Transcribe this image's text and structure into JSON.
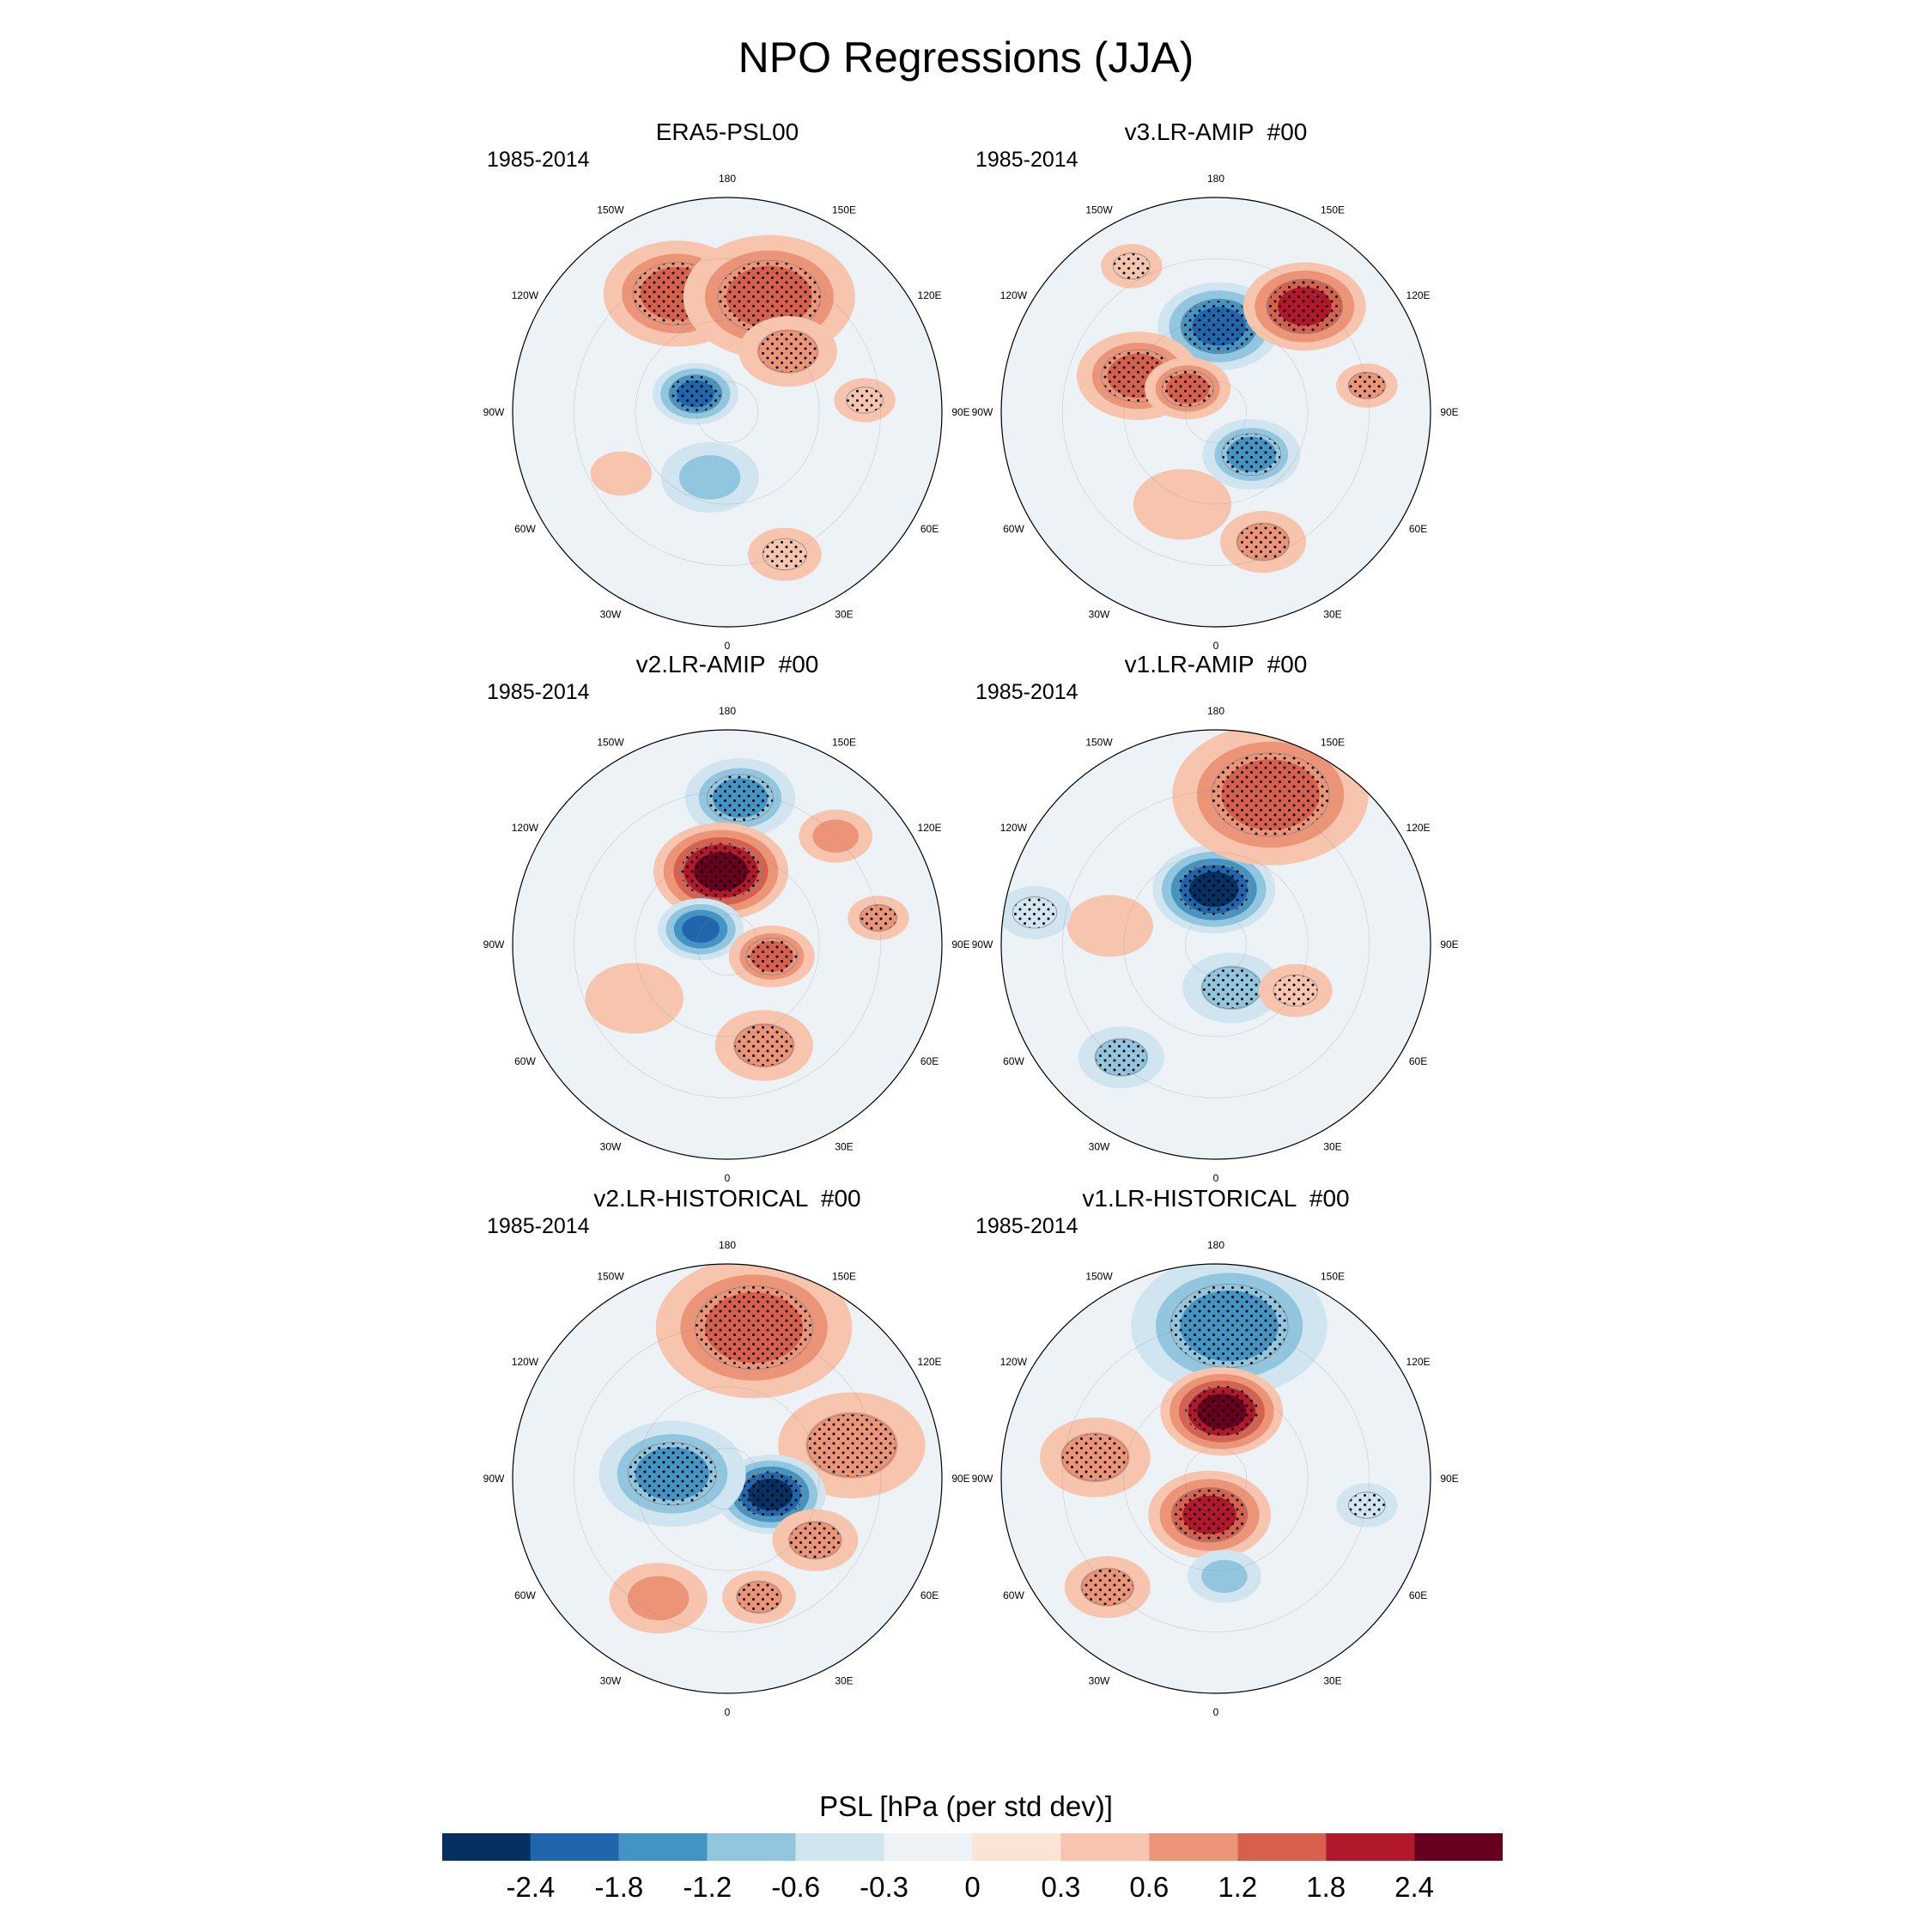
{
  "figure": {
    "title": "NPO Regressions (JJA)",
    "colorbar_title": "PSL [hPa (per std dev)]"
  },
  "chart_data": {
    "type": "heatmap",
    "projection": "north-polar-stereographic",
    "title": "NPO Regressions (JJA)",
    "colorbar": {
      "label": "PSL [hPa (per std dev)]",
      "levels": [
        "-2.4",
        "-1.8",
        "-1.2",
        "-0.6",
        "-0.3",
        "0",
        "0.3",
        "0.6",
        "1.2",
        "1.8",
        "2.4"
      ],
      "colors": [
        "#053061",
        "#2166ac",
        "#4393c3",
        "#92c5de",
        "#d1e5f0",
        "#edf2f7",
        "#fbe3d6",
        "#f7c5ae",
        "#ec9478",
        "#d6604d",
        "#b2182b",
        "#67001f"
      ]
    },
    "longitude_labels": [
      "180",
      "150E",
      "120E",
      "90E",
      "60E",
      "30E",
      "0",
      "30W",
      "60W",
      "90W",
      "120W",
      "150W"
    ],
    "panels": [
      {
        "title": "ERA5-PSL00",
        "period": "1985-2014",
        "anomalies": [
          {
            "lon": -157,
            "lat": 48,
            "value": 1.0,
            "spread": 12,
            "stipple": true
          },
          {
            "lon": 160,
            "lat": 50,
            "value": 1.0,
            "spread": 14,
            "stipple": true
          },
          {
            "lon": 135,
            "lat": 62,
            "value": 0.8,
            "spread": 8,
            "stipple": true
          },
          {
            "lon": -120,
            "lat": 78,
            "value": -2.0,
            "spread": 7,
            "stipple": true
          },
          {
            "lon": -15,
            "lat": 68,
            "value": -0.5,
            "spread": 8,
            "stipple": false
          },
          {
            "lon": 22,
            "lat": 40,
            "value": 0.4,
            "spread": 6,
            "stipple": true
          },
          {
            "lon": 95,
            "lat": 45,
            "value": 0.3,
            "spread": 5,
            "stipple": true
          },
          {
            "lon": -60,
            "lat": 50,
            "value": 0.3,
            "spread": 5,
            "stipple": false
          }
        ]
      },
      {
        "title": "v3.LR-AMIP  #00",
        "period": "1985-2014",
        "anomalies": [
          {
            "lon": 178,
            "lat": 62,
            "value": -2.0,
            "spread": 10,
            "stipple": true
          },
          {
            "lon": 140,
            "lat": 45,
            "value": 1.6,
            "spread": 10,
            "stipple": true
          },
          {
            "lon": -115,
            "lat": 62,
            "value": 1.3,
            "spread": 10,
            "stipple": true
          },
          {
            "lon": -130,
            "lat": 78,
            "value": 1.2,
            "spread": 7,
            "stipple": true
          },
          {
            "lon": 40,
            "lat": 72,
            "value": -1.2,
            "spread": 8,
            "stipple": true
          },
          {
            "lon": 20,
            "lat": 45,
            "value": 0.6,
            "spread": 7,
            "stipple": true
          },
          {
            "lon": 100,
            "lat": 40,
            "value": 0.5,
            "spread": 5,
            "stipple": true
          },
          {
            "lon": -150,
            "lat": 35,
            "value": 0.3,
            "spread": 5,
            "stipple": true
          },
          {
            "lon": -20,
            "lat": 58,
            "value": 0.3,
            "spread": 8,
            "stipple": false
          }
        ]
      },
      {
        "title": "v2.LR-AMIP  #00",
        "period": "1985-2014",
        "anomalies": [
          {
            "lon": 175,
            "lat": 42,
            "value": -1.4,
            "spread": 9,
            "stipple": true
          },
          {
            "lon": -175,
            "lat": 66,
            "value": 2.6,
            "spread": 11,
            "stipple": true
          },
          {
            "lon": -120,
            "lat": 80,
            "value": -1.6,
            "spread": 7,
            "stipple": false
          },
          {
            "lon": 75,
            "lat": 75,
            "value": 1.0,
            "spread": 7,
            "stipple": true
          },
          {
            "lon": 20,
            "lat": 55,
            "value": 0.8,
            "spread": 8,
            "stipple": true
          },
          {
            "lon": 135,
            "lat": 40,
            "value": 0.8,
            "spread": 6,
            "stipple": false
          },
          {
            "lon": 100,
            "lat": 40,
            "value": 0.6,
            "spread": 5,
            "stipple": true
          },
          {
            "lon": -60,
            "lat": 55,
            "value": 0.3,
            "spread": 8,
            "stipple": false
          }
        ]
      },
      {
        "title": "v1.LR-AMIP  #00",
        "period": "1985-2014",
        "anomalies": [
          {
            "lon": -178,
            "lat": 72,
            "value": -2.4,
            "spread": 10,
            "stipple": true
          },
          {
            "lon": 160,
            "lat": 38,
            "value": 1.0,
            "spread": 16,
            "stipple": true
          },
          {
            "lon": 20,
            "lat": 75,
            "value": -0.6,
            "spread": 8,
            "stipple": true
          },
          {
            "lon": -40,
            "lat": 42,
            "value": -0.6,
            "spread": 7,
            "stipple": true
          },
          {
            "lon": -100,
            "lat": 55,
            "value": 0.4,
            "spread": 7,
            "stipple": false
          },
          {
            "lon": 60,
            "lat": 60,
            "value": 0.4,
            "spread": 6,
            "stipple": true
          },
          {
            "lon": -100,
            "lat": 30,
            "value": -0.4,
            "spread": 6,
            "stipple": true
          }
        ]
      },
      {
        "title": "v2.LR-HISTORICAL  #00",
        "period": "1985-2014",
        "anomalies": [
          {
            "lon": 170,
            "lat": 40,
            "value": 1.0,
            "spread": 16,
            "stipple": true
          },
          {
            "lon": 105,
            "lat": 48,
            "value": 0.8,
            "spread": 12,
            "stipple": true
          },
          {
            "lon": 70,
            "lat": 75,
            "value": -2.6,
            "spread": 9,
            "stipple": true
          },
          {
            "lon": -95,
            "lat": 72,
            "value": -1.4,
            "spread": 12,
            "stipple": true
          },
          {
            "lon": 55,
            "lat": 55,
            "value": 0.6,
            "spread": 7,
            "stipple": true
          },
          {
            "lon": -30,
            "lat": 45,
            "value": 0.5,
            "spread": 8,
            "stipple": false
          },
          {
            "lon": 15,
            "lat": 50,
            "value": 0.5,
            "spread": 6,
            "stipple": true
          }
        ]
      },
      {
        "title": "v1.LR-HISTORICAL  #00",
        "period": "1985-2014",
        "anomalies": [
          {
            "lon": 175,
            "lat": 40,
            "value": -1.0,
            "spread": 16,
            "stipple": true
          },
          {
            "lon": 175,
            "lat": 68,
            "value": 2.2,
            "spread": 10,
            "stipple": true
          },
          {
            "lon": -10,
            "lat": 78,
            "value": 1.6,
            "spread": 10,
            "stipple": true
          },
          {
            "lon": -100,
            "lat": 50,
            "value": 0.8,
            "spread": 9,
            "stipple": true
          },
          {
            "lon": 5,
            "lat": 58,
            "value": -0.8,
            "spread": 6,
            "stipple": false
          },
          {
            "lon": -45,
            "lat": 40,
            "value": 0.6,
            "spread": 7,
            "stipple": true
          },
          {
            "lon": 80,
            "lat": 40,
            "value": -0.4,
            "spread": 5,
            "stipple": true
          }
        ]
      }
    ]
  }
}
